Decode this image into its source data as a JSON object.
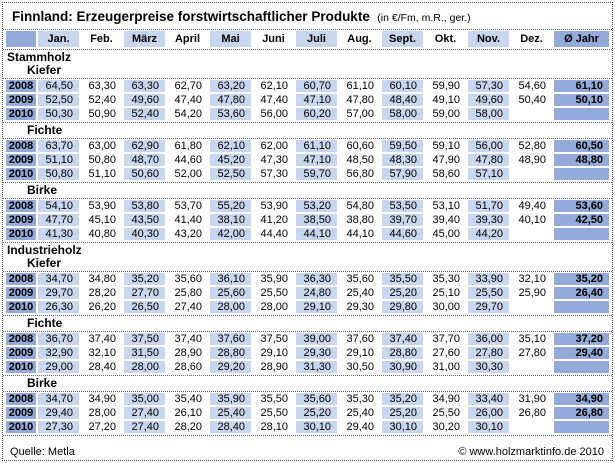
{
  "title": {
    "main": "Finnland: Erzeugerpreise forstwirtschaftlicher Produkte",
    "unit": "(in €/Fm, m.R., ger.)"
  },
  "footer": {
    "source": "Quelle: Metla",
    "copyright": "© www.holzmarktinfo.de 2010"
  },
  "colors": {
    "medium_blue": "#94AAD8",
    "light_blue": "#C8D6EE",
    "border_dotted": "#555555",
    "background": "#ffffff",
    "text": "#000000"
  },
  "chart_data": {
    "type": "table",
    "title": "Finnland: Erzeugerpreise forstwirtschaftlicher Produkte (in €/Fm, m.R., ger.)",
    "columns": [
      "",
      "Jan.",
      "Feb.",
      "März",
      "April",
      "Mai",
      "Juni",
      "Juli",
      "Aug.",
      "Sept.",
      "Okt.",
      "Nov.",
      "Dez.",
      "Ø Jahr"
    ],
    "sections": [
      {
        "label": "Stammholz",
        "species": [
          {
            "label": "Kiefer",
            "rows": [
              {
                "year": "2008",
                "months": [
                  "64,50",
                  "63,30",
                  "63,30",
                  "62,70",
                  "63,20",
                  "62,10",
                  "60,70",
                  "61,10",
                  "60,10",
                  "59,90",
                  "57,30",
                  "54,60"
                ],
                "avg": "61,10"
              },
              {
                "year": "2009",
                "months": [
                  "52,50",
                  "52,40",
                  "49,60",
                  "47,40",
                  "47,80",
                  "47,40",
                  "47,10",
                  "47,80",
                  "48,40",
                  "49,10",
                  "49,60",
                  "50,40"
                ],
                "avg": "50,10"
              },
              {
                "year": "2010",
                "months": [
                  "50,30",
                  "50,90",
                  "52,40",
                  "54,20",
                  "53,60",
                  "56,00",
                  "60,20",
                  "57,00",
                  "58,00",
                  "59,00",
                  "58,00",
                  ""
                ],
                "avg": ""
              }
            ]
          },
          {
            "label": "Fichte",
            "rows": [
              {
                "year": "2008",
                "months": [
                  "63,70",
                  "63,00",
                  "62,90",
                  "61,80",
                  "62,10",
                  "62,00",
                  "61,10",
                  "60,60",
                  "59,50",
                  "59,10",
                  "56,00",
                  "52,80"
                ],
                "avg": "60,50"
              },
              {
                "year": "2009",
                "months": [
                  "51,10",
                  "50,80",
                  "48,70",
                  "44,60",
                  "45,20",
                  "47,30",
                  "47,10",
                  "48,50",
                  "48,30",
                  "47,90",
                  "47,80",
                  "48,90"
                ],
                "avg": "48,80"
              },
              {
                "year": "2010",
                "months": [
                  "50,80",
                  "51,10",
                  "50,60",
                  "52,00",
                  "52,50",
                  "57,30",
                  "59,70",
                  "56,80",
                  "57,90",
                  "58,60",
                  "57,10",
                  ""
                ],
                "avg": ""
              }
            ]
          },
          {
            "label": "Birke",
            "rows": [
              {
                "year": "2008",
                "months": [
                  "54,10",
                  "53,90",
                  "53,80",
                  "53,70",
                  "55,20",
                  "53,90",
                  "53,20",
                  "54,80",
                  "53,50",
                  "53,10",
                  "51,70",
                  "49,40"
                ],
                "avg": "53,60"
              },
              {
                "year": "2009",
                "months": [
                  "47,70",
                  "45,10",
                  "43,50",
                  "41,40",
                  "38,10",
                  "41,20",
                  "38,50",
                  "38,80",
                  "39,70",
                  "39,40",
                  "39,30",
                  "40,10"
                ],
                "avg": "42,50"
              },
              {
                "year": "2010",
                "months": [
                  "41,30",
                  "40,80",
                  "40,30",
                  "43,20",
                  "42,00",
                  "44,40",
                  "44,10",
                  "44,10",
                  "44,60",
                  "45,00",
                  "44,20",
                  ""
                ],
                "avg": ""
              }
            ]
          }
        ]
      },
      {
        "label": "Industrieholz",
        "species": [
          {
            "label": "Kiefer",
            "rows": [
              {
                "year": "2008",
                "months": [
                  "34,70",
                  "34,80",
                  "35,20",
                  "35,60",
                  "36,10",
                  "35,90",
                  "36,30",
                  "35,60",
                  "35,50",
                  "35,30",
                  "33,90",
                  "32,10"
                ],
                "avg": "35,20"
              },
              {
                "year": "2009",
                "months": [
                  "29,70",
                  "28,20",
                  "27,70",
                  "25,80",
                  "25,60",
                  "25,50",
                  "24,80",
                  "25,40",
                  "25,20",
                  "25,10",
                  "25,50",
                  "25,90"
                ],
                "avg": "26,40"
              },
              {
                "year": "2010",
                "months": [
                  "26,30",
                  "26,20",
                  "26,50",
                  "27,40",
                  "28,00",
                  "28,00",
                  "29,10",
                  "29,30",
                  "29,80",
                  "30,00",
                  "29,70",
                  ""
                ],
                "avg": ""
              }
            ]
          },
          {
            "label": "Fichte",
            "rows": [
              {
                "year": "2008",
                "months": [
                  "36,70",
                  "37,40",
                  "37,50",
                  "37,40",
                  "37,60",
                  "37,50",
                  "39,00",
                  "37,60",
                  "37,40",
                  "37,70",
                  "36,00",
                  "35,10"
                ],
                "avg": "37,20"
              },
              {
                "year": "2009",
                "months": [
                  "32,90",
                  "32,10",
                  "31,50",
                  "28,90",
                  "28,80",
                  "29,10",
                  "29,30",
                  "29,10",
                  "28,80",
                  "27,60",
                  "27,80",
                  "27,80"
                ],
                "avg": "29,40"
              },
              {
                "year": "2010",
                "months": [
                  "29,00",
                  "28,40",
                  "28,00",
                  "28,60",
                  "29,20",
                  "28,90",
                  "31,30",
                  "30,50",
                  "30,90",
                  "31,00",
                  "30,30",
                  ""
                ],
                "avg": ""
              }
            ]
          },
          {
            "label": "Birke",
            "rows": [
              {
                "year": "2008",
                "months": [
                  "34,70",
                  "34,90",
                  "35,00",
                  "35,40",
                  "35,90",
                  "35,50",
                  "35,60",
                  "35,30",
                  "35,20",
                  "34,90",
                  "33,40",
                  "31,90"
                ],
                "avg": "34,90"
              },
              {
                "year": "2009",
                "months": [
                  "29,40",
                  "28,00",
                  "27,40",
                  "26,10",
                  "25,40",
                  "25,50",
                  "25,20",
                  "25,40",
                  "25,20",
                  "25,50",
                  "26,00",
                  "26,80"
                ],
                "avg": "26,80"
              },
              {
                "year": "2010",
                "months": [
                  "27,30",
                  "27,20",
                  "27,40",
                  "28,20",
                  "28,40",
                  "28,10",
                  "30,10",
                  "29,40",
                  "30,10",
                  "30,20",
                  "30,10",
                  ""
                ],
                "avg": ""
              }
            ]
          }
        ]
      }
    ]
  }
}
